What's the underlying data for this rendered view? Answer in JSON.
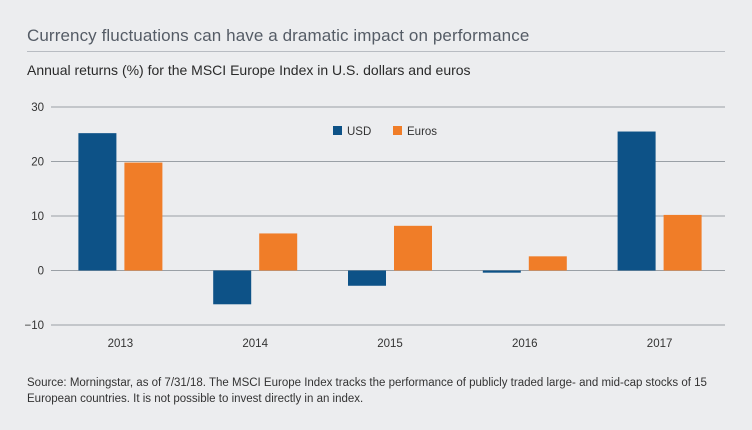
{
  "header": {
    "title": "Currency fluctuations can have a dramatic impact on performance",
    "subtitle": "Annual returns (%) for the MSCI Europe Index in U.S. dollars and euros"
  },
  "footer": {
    "source": "Source: Morningstar, as of 7/31/18. The MSCI Europe Index tracks the performance of publicly traded large- and mid-cap stocks of 15 European countries. It is not possible to invest directly in an index."
  },
  "colors": {
    "usd": "#0d5287",
    "euros": "#f07d28",
    "grid": "#9aa0a6",
    "background": "#ecedef"
  },
  "chart_data": {
    "type": "bar",
    "title": "Annual returns (%) for the MSCI Europe Index in U.S. dollars and euros",
    "xlabel": "",
    "ylabel": "",
    "categories": [
      "2013",
      "2014",
      "2015",
      "2016",
      "2017"
    ],
    "series": [
      {
        "name": "USD",
        "values": [
          25.2,
          -6.2,
          -2.8,
          -0.4,
          25.5
        ]
      },
      {
        "name": "Euros",
        "values": [
          19.8,
          6.8,
          8.2,
          2.6,
          10.2
        ]
      }
    ],
    "ylim": [
      -10,
      30
    ],
    "yticks": [
      30,
      20,
      10,
      0,
      -10
    ],
    "ytick_labels": [
      "30",
      "20",
      "10",
      "0",
      "−10"
    ],
    "legend": [
      "USD",
      "Euros"
    ],
    "legend_position": "top-center",
    "grid": true
  }
}
